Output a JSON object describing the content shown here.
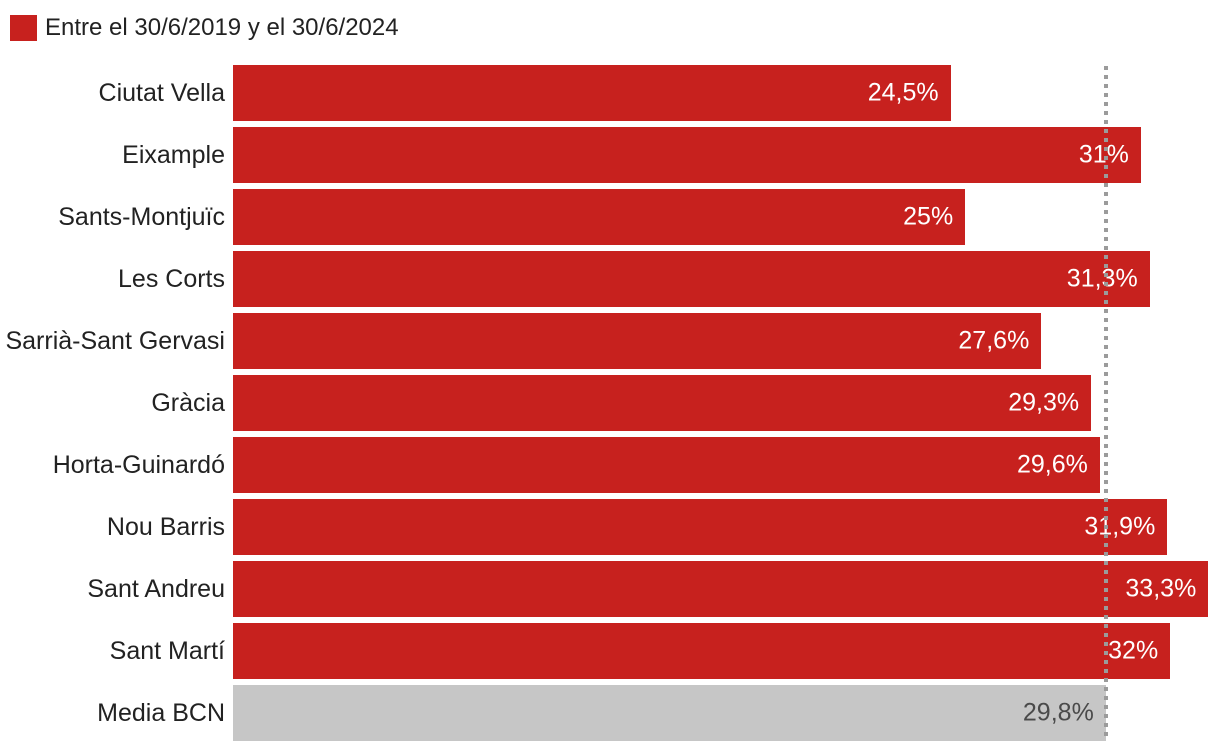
{
  "legend": {
    "label": "Entre el 30/6/2019 y el 30/6/2024"
  },
  "colors": {
    "bar_red": "#c7211e",
    "bar_gray": "#c6c6c6",
    "value_on_red": "#ffffff",
    "value_on_gray": "#4a4a4a",
    "category_text": "#222222",
    "reference_line": "#9b9b9b",
    "background": "#ffffff"
  },
  "chart_data": {
    "type": "bar",
    "orientation": "horizontal",
    "title": "",
    "legend_label": "Entre el 30/6/2019 y el 30/6/2024",
    "legend_position": "top-left",
    "grid": false,
    "categories": [
      "Ciutat Vella",
      "Eixample",
      "Sants-Montjuïc",
      "Les Corts",
      "Sarrià-Sant Gervasi",
      "Gràcia",
      "Horta-Guinardó",
      "Nou Barris",
      "Sant Andreu",
      "Sant Martí",
      "Media BCN"
    ],
    "values": [
      24.5,
      31,
      25,
      31.3,
      27.6,
      29.3,
      29.6,
      31.9,
      33.3,
      32,
      29.8
    ],
    "value_labels": [
      "24,5%",
      "31%",
      "25%",
      "31,3%",
      "27,6%",
      "29,3%",
      "29,6%",
      "31,9%",
      "33,3%",
      "32%",
      "29,8%"
    ],
    "bar_colors": [
      "#c7211e",
      "#c7211e",
      "#c7211e",
      "#c7211e",
      "#c7211e",
      "#c7211e",
      "#c7211e",
      "#c7211e",
      "#c7211e",
      "#c7211e",
      "#c6c6c6"
    ],
    "value_label_colors": [
      "#ffffff",
      "#ffffff",
      "#ffffff",
      "#ffffff",
      "#ffffff",
      "#ffffff",
      "#ffffff",
      "#ffffff",
      "#ffffff",
      "#ffffff",
      "#4a4a4a"
    ],
    "xlim": [
      0,
      33.7
    ],
    "reference_line": {
      "value": 29.8,
      "style": "dotted"
    }
  }
}
